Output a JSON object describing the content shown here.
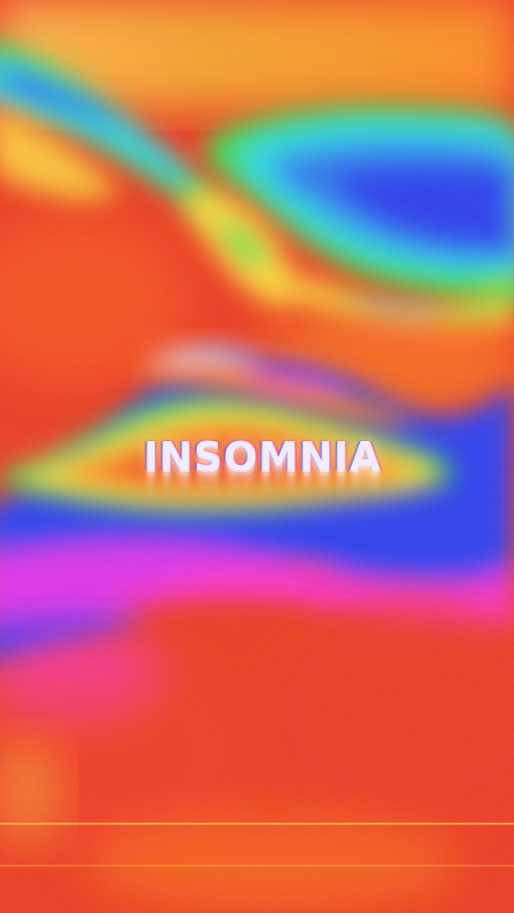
{
  "poster": {
    "title": "INSOMNIA",
    "palette": {
      "red": "#f03a1e",
      "orange": "#ff7a1a",
      "yellow": "#ffd83a",
      "green": "#3ce04a",
      "cyan": "#2ad6e6",
      "blue": "#2a3cf0",
      "magenta": "#ff2ee8"
    }
  }
}
